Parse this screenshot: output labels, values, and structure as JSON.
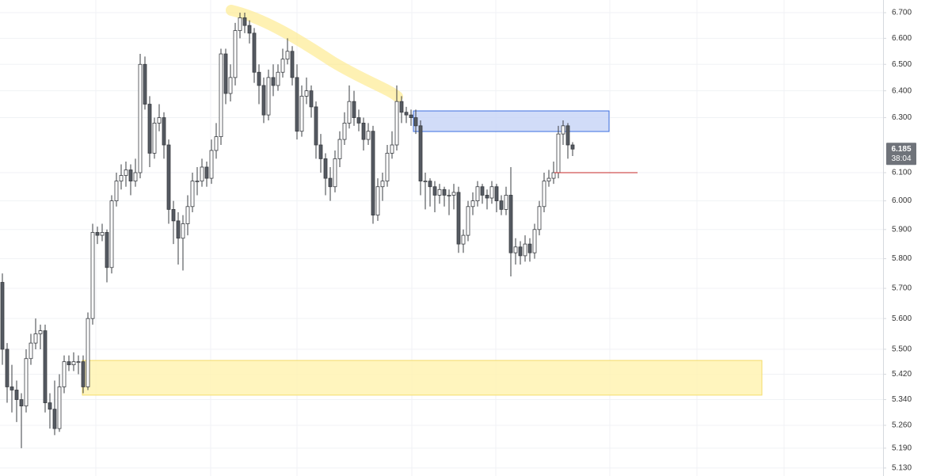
{
  "chart_data": {
    "type": "candlestick",
    "log_scale": true,
    "grid": true,
    "ylim": [
      5.106,
      6.75
    ],
    "yticks": [
      {
        "value": 6.7,
        "label": "6.700"
      },
      {
        "value": 6.6,
        "label": "6.600"
      },
      {
        "value": 6.5,
        "label": "6.500"
      },
      {
        "value": 6.4,
        "label": "6.400"
      },
      {
        "value": 6.3,
        "label": "6.300"
      },
      {
        "value": 6.1,
        "label": "6.100"
      },
      {
        "value": 6.0,
        "label": "6.000"
      },
      {
        "value": 5.9,
        "label": "5.900"
      },
      {
        "value": 5.8,
        "label": "5.800"
      },
      {
        "value": 5.7,
        "label": "5.700"
      },
      {
        "value": 5.6,
        "label": "5.600"
      },
      {
        "value": 5.5,
        "label": "5.500"
      },
      {
        "value": 5.42,
        "label": "5.420"
      },
      {
        "value": 5.34,
        "label": "5.340"
      },
      {
        "value": 5.26,
        "label": "5.260"
      },
      {
        "value": 5.19,
        "label": "5.190"
      },
      {
        "value": 5.13,
        "label": "5.130"
      }
    ],
    "up_color": "#ffffff",
    "down_color": "#555a62",
    "wick_color": "#3a3d42",
    "ohlc": [
      [
        5.72,
        5.75,
        5.45,
        5.5
      ],
      [
        5.5,
        5.52,
        5.33,
        5.38
      ],
      [
        5.38,
        5.45,
        5.3,
        5.37
      ],
      [
        5.37,
        5.4,
        5.27,
        5.34
      ],
      [
        5.34,
        5.36,
        5.19,
        5.32
      ],
      [
        5.32,
        5.5,
        5.3,
        5.47
      ],
      [
        5.47,
        5.55,
        5.45,
        5.52
      ],
      [
        5.52,
        5.6,
        5.5,
        5.55
      ],
      [
        5.55,
        5.58,
        5.5,
        5.56
      ],
      [
        5.56,
        5.58,
        5.3,
        5.33
      ],
      [
        5.33,
        5.36,
        5.25,
        5.31
      ],
      [
        5.31,
        5.4,
        5.23,
        5.25
      ],
      [
        5.25,
        5.42,
        5.24,
        5.38
      ],
      [
        5.38,
        5.48,
        5.36,
        5.46
      ],
      [
        5.46,
        5.48,
        5.43,
        5.45
      ],
      [
        5.45,
        5.49,
        5.43,
        5.46
      ],
      [
        5.46,
        5.48,
        5.42,
        5.46
      ],
      [
        5.46,
        5.48,
        5.36,
        5.38
      ],
      [
        5.38,
        5.62,
        5.37,
        5.6
      ],
      [
        5.6,
        5.92,
        5.58,
        5.89
      ],
      [
        5.89,
        5.91,
        5.85,
        5.88
      ],
      [
        5.88,
        5.92,
        5.86,
        5.89
      ],
      [
        5.89,
        5.9,
        5.72,
        5.77
      ],
      [
        5.77,
        6.02,
        5.75,
        6.0
      ],
      [
        6.0,
        6.1,
        5.98,
        6.07
      ],
      [
        6.07,
        6.13,
        6.04,
        6.09
      ],
      [
        6.09,
        6.14,
        6.05,
        6.11
      ],
      [
        6.11,
        6.13,
        6.02,
        6.07
      ],
      [
        6.07,
        6.15,
        6.05,
        6.1
      ],
      [
        6.1,
        6.54,
        6.08,
        6.5
      ],
      [
        6.5,
        6.53,
        6.33,
        6.35
      ],
      [
        6.35,
        6.38,
        6.12,
        6.17
      ],
      [
        6.17,
        6.3,
        6.15,
        6.28
      ],
      [
        6.28,
        6.35,
        6.25,
        6.3
      ],
      [
        6.3,
        6.32,
        6.15,
        6.2
      ],
      [
        6.2,
        6.22,
        5.92,
        5.97
      ],
      [
        5.97,
        6.0,
        5.85,
        5.93
      ],
      [
        5.93,
        5.96,
        5.78,
        5.87
      ],
      [
        5.87,
        5.95,
        5.76,
        5.92
      ],
      [
        5.92,
        6.02,
        5.88,
        5.98
      ],
      [
        5.98,
        6.1,
        5.96,
        6.07
      ],
      [
        6.07,
        6.12,
        6.02,
        6.07
      ],
      [
        6.07,
        6.15,
        6.05,
        6.12
      ],
      [
        6.12,
        6.14,
        6.05,
        6.08
      ],
      [
        6.08,
        6.22,
        6.06,
        6.18
      ],
      [
        6.18,
        6.28,
        6.15,
        6.23
      ],
      [
        6.23,
        6.56,
        6.2,
        6.54
      ],
      [
        6.54,
        6.56,
        6.35,
        6.39
      ],
      [
        6.39,
        6.5,
        6.36,
        6.45
      ],
      [
        6.45,
        6.66,
        6.42,
        6.63
      ],
      [
        6.63,
        6.7,
        6.6,
        6.68
      ],
      [
        6.68,
        6.7,
        6.62,
        6.65
      ],
      [
        6.65,
        6.67,
        6.58,
        6.62
      ],
      [
        6.62,
        6.64,
        6.43,
        6.47
      ],
      [
        6.47,
        6.5,
        6.35,
        6.42
      ],
      [
        6.42,
        6.45,
        6.28,
        6.31
      ],
      [
        6.31,
        6.48,
        6.29,
        6.45
      ],
      [
        6.45,
        6.5,
        6.38,
        6.42
      ],
      [
        6.42,
        6.5,
        6.4,
        6.47
      ],
      [
        6.47,
        6.56,
        6.45,
        6.52
      ],
      [
        6.52,
        6.6,
        6.5,
        6.55
      ],
      [
        6.55,
        6.57,
        6.42,
        6.45
      ],
      [
        6.45,
        6.5,
        6.22,
        6.25
      ],
      [
        6.25,
        6.42,
        6.23,
        6.38
      ],
      [
        6.38,
        6.45,
        6.35,
        6.4
      ],
      [
        6.4,
        6.42,
        6.3,
        6.34
      ],
      [
        6.34,
        6.36,
        6.15,
        6.2
      ],
      [
        6.2,
        6.24,
        6.1,
        6.15
      ],
      [
        6.15,
        6.17,
        6.02,
        6.08
      ],
      [
        6.08,
        6.12,
        6.0,
        6.05
      ],
      [
        6.05,
        6.18,
        6.03,
        6.15
      ],
      [
        6.15,
        6.25,
        6.12,
        6.22
      ],
      [
        6.22,
        6.32,
        6.2,
        6.28
      ],
      [
        6.28,
        6.42,
        6.26,
        6.36
      ],
      [
        6.36,
        6.4,
        6.27,
        6.3
      ],
      [
        6.3,
        6.33,
        6.25,
        6.28
      ],
      [
        6.28,
        6.3,
        6.18,
        6.22
      ],
      [
        6.22,
        6.28,
        6.2,
        6.25
      ],
      [
        6.25,
        6.27,
        5.92,
        5.95
      ],
      [
        5.95,
        6.08,
        5.93,
        6.05
      ],
      [
        6.05,
        6.1,
        6.0,
        6.07
      ],
      [
        6.07,
        6.2,
        6.05,
        6.17
      ],
      [
        6.17,
        6.25,
        6.15,
        6.2
      ],
      [
        6.2,
        6.42,
        6.18,
        6.36
      ],
      [
        6.36,
        6.38,
        6.28,
        6.32
      ],
      [
        6.32,
        6.34,
        6.28,
        6.31
      ],
      [
        6.31,
        6.33,
        6.27,
        6.3
      ],
      [
        6.3,
        6.33,
        6.24,
        6.27
      ],
      [
        6.27,
        6.29,
        6.02,
        6.07
      ],
      [
        6.07,
        6.1,
        5.97,
        6.07
      ],
      [
        6.07,
        6.08,
        5.98,
        6.05
      ],
      [
        6.05,
        6.07,
        5.96,
        6.02
      ],
      [
        6.02,
        6.06,
        5.99,
        6.04
      ],
      [
        6.04,
        6.05,
        5.98,
        6.02
      ],
      [
        6.02,
        6.04,
        5.95,
        6.02
      ],
      [
        6.02,
        6.06,
        5.97,
        6.03
      ],
      [
        6.03,
        6.05,
        5.82,
        5.85
      ],
      [
        5.85,
        5.9,
        5.82,
        5.88
      ],
      [
        5.88,
        6.0,
        5.86,
        5.98
      ],
      [
        5.98,
        6.03,
        5.95,
        6.0
      ],
      [
        6.0,
        6.07,
        5.98,
        6.05
      ],
      [
        6.05,
        6.06,
        5.99,
        6.02
      ],
      [
        6.02,
        6.04,
        5.97,
        6.01
      ],
      [
        6.01,
        6.07,
        5.99,
        6.05
      ],
      [
        6.05,
        6.06,
        5.96,
        6.0
      ],
      [
        6.0,
        6.02,
        5.95,
        5.97
      ],
      [
        5.97,
        6.05,
        5.95,
        6.02
      ],
      [
        6.02,
        6.12,
        5.74,
        5.82
      ],
      [
        5.82,
        5.87,
        5.78,
        5.84
      ],
      [
        5.84,
        5.86,
        5.78,
        5.81
      ],
      [
        5.81,
        5.88,
        5.79,
        5.85
      ],
      [
        5.85,
        5.87,
        5.79,
        5.82
      ],
      [
        5.82,
        5.92,
        5.8,
        5.9
      ],
      [
        5.9,
        6.0,
        5.88,
        5.98
      ],
      [
        5.98,
        6.1,
        5.96,
        6.07
      ],
      [
        6.07,
        6.11,
        6.05,
        6.08
      ],
      [
        6.08,
        6.14,
        6.06,
        6.1
      ],
      [
        6.1,
        6.27,
        6.08,
        6.24
      ],
      [
        6.24,
        6.29,
        6.2,
        6.27
      ],
      [
        6.27,
        6.28,
        6.15,
        6.2
      ],
      [
        6.2,
        6.21,
        6.16,
        6.185
      ]
    ],
    "zones": [
      {
        "low": 6.249,
        "high": 6.325,
        "color": "#c9d6f7",
        "border": "#3d6fe0"
      },
      {
        "low": 5.354,
        "high": 5.464,
        "color": "#fff3b3",
        "border": "#f5dc6a"
      }
    ],
    "levels": [
      {
        "value": 6.1,
        "color": "#c62828"
      }
    ],
    "last_price": 6.185,
    "countdown": "38:04"
  }
}
